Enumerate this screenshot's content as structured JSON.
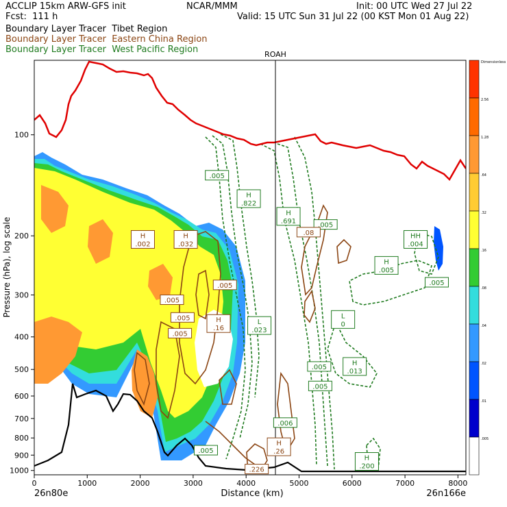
{
  "header": {
    "line1_left": "ACCLIP 15km ARW-GFS init",
    "line1_mid": "NCAR/MMM",
    "line1_right": "Init: 00 UTC Wed 27 Jul 22",
    "line2_left": "Fcst:  111 h",
    "line2_right": "Valid: 15 UTC Sun 31 Jul 22 (00 KST Mon 01 Aug 22)",
    "title_tibet": "Boundary Layer Tracer  Tibet Region",
    "title_china": "Boundary Layer Tracer  Eastern China Region",
    "title_wpac": "Boundary Layer Tracer  West Pacific Region",
    "colors": {
      "tibet": "#000000",
      "china": "#8b4513",
      "wpac": "#1e7a1e"
    }
  },
  "chart_data": {
    "type": "cross-section",
    "xlabel": "Distance (km)",
    "ylabel": "Pressure (hPa), log scale",
    "x_ticks": [
      "0",
      "1000",
      "2000",
      "3000",
      "4000",
      "5000",
      "6000",
      "7000",
      "8000"
    ],
    "y_ticks": [
      "100",
      "200",
      "300",
      "400",
      "500",
      "600",
      "700",
      "800",
      "900",
      "1000"
    ],
    "xlim": [
      0,
      8150
    ],
    "ylim": [
      60,
      1030
    ],
    "y_scale": "log",
    "left_endpoint": "26n80e",
    "right_endpoint": "26n166e",
    "marker": {
      "label": "ROAH",
      "x": 4550
    },
    "colorbar": {
      "labels": [
        "Dimensionless",
        "2.56",
        "1.28",
        ".64",
        ".32",
        ".16",
        ".08",
        ".04",
        ".02",
        ".01",
        ".005"
      ],
      "colors": [
        "#ff3300",
        "#ff6a00",
        "#ff9933",
        "#ffcc33",
        "#ffff33",
        "#33cc33",
        "#33dddd",
        "#3399ff",
        "#0055ff",
        "#0000cc",
        "#ffffff"
      ]
    },
    "tropopause_color": "#e00000",
    "labels_wpac": [
      {
        "letter": "H",
        "value": ".822",
        "x": 4050,
        "p": 155
      },
      {
        "letter": "H",
        "value": ".691",
        "x": 4800,
        "p": 175
      },
      {
        "letter": "",
        "value": ".005",
        "x": 3450,
        "p": 132
      },
      {
        "letter": "",
        "value": ".005",
        "x": 5500,
        "p": 185
      },
      {
        "letter": "L",
        "value": ".023",
        "x": 4250,
        "p": 370
      },
      {
        "letter": "L",
        "value": "0",
        "x": 5830,
        "p": 355
      },
      {
        "letter": "",
        "value": ".005",
        "x": 5380,
        "p": 490
      },
      {
        "letter": "H",
        "value": ".013",
        "x": 6050,
        "p": 490
      },
      {
        "letter": "",
        "value": ".005",
        "x": 5400,
        "p": 560
      },
      {
        "letter": "H",
        "value": ".005",
        "x": 6650,
        "p": 245
      },
      {
        "letter": "HH",
        "value": ".004",
        "x": 7200,
        "p": 205
      },
      {
        "letter": "",
        "value": ".005",
        "x": 7600,
        "p": 275
      },
      {
        "letter": "H",
        "value": ".200",
        "x": 6280,
        "p": 940
      },
      {
        "letter": "",
        "value": ".005",
        "x": 3240,
        "p": 870
      },
      {
        "letter": "",
        "value": ".006",
        "x": 4740,
        "p": 720
      }
    ],
    "labels_china": [
      {
        "letter": "H",
        "value": ".002",
        "x": 2050,
        "p": 205
      },
      {
        "letter": "H",
        "value": ".032",
        "x": 2860,
        "p": 205
      },
      {
        "letter": "",
        "value": ".005",
        "x": 2600,
        "p": 310
      },
      {
        "letter": "",
        "value": ".005",
        "x": 2800,
        "p": 350
      },
      {
        "letter": "",
        "value": ".005",
        "x": 2750,
        "p": 390
      },
      {
        "letter": "",
        "value": ".005",
        "x": 3600,
        "p": 280
      },
      {
        "letter": "H",
        "value": ".16",
        "x": 3480,
        "p": 365
      },
      {
        "letter": "",
        "value": ".08",
        "x": 5180,
        "p": 195
      },
      {
        "letter": "H",
        "value": ".26",
        "x": 4620,
        "p": 850
      },
      {
        "letter": "",
        "value": ".226",
        "x": 4200,
        "p": 990
      }
    ]
  }
}
